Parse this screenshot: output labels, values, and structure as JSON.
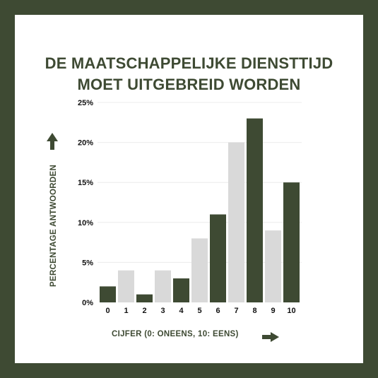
{
  "colors": {
    "dark": "#3e4a33",
    "light": "#d9d9d9",
    "grid": "#ececec",
    "background": "#ffffff",
    "frame": "#3e4a33"
  },
  "chart_data": {
    "type": "bar",
    "title_lines": [
      "DE MAATSCHAPPELIJKE DIENSTTIJD",
      "MOET UITGEBREID WORDEN"
    ],
    "xlabel": "CIJFER (0: ONEENS, 10: EENS)",
    "ylabel": "PERCENTAGE ANTWOORDEN",
    "categories": [
      "0",
      "1",
      "2",
      "3",
      "4",
      "5",
      "6",
      "7",
      "8",
      "9",
      "10"
    ],
    "values": [
      2,
      4,
      1,
      4,
      3,
      8,
      11,
      20,
      23,
      9,
      15
    ],
    "bar_colors": [
      "dark",
      "light",
      "dark",
      "light",
      "dark",
      "light",
      "dark",
      "light",
      "dark",
      "light",
      "dark"
    ],
    "ylim": [
      0,
      25
    ],
    "yticks": [
      0,
      5,
      10,
      15,
      20,
      25
    ],
    "ytick_labels": [
      "0%",
      "5%",
      "10%",
      "15%",
      "20%",
      "25%"
    ],
    "grid": true,
    "legend": "none"
  }
}
